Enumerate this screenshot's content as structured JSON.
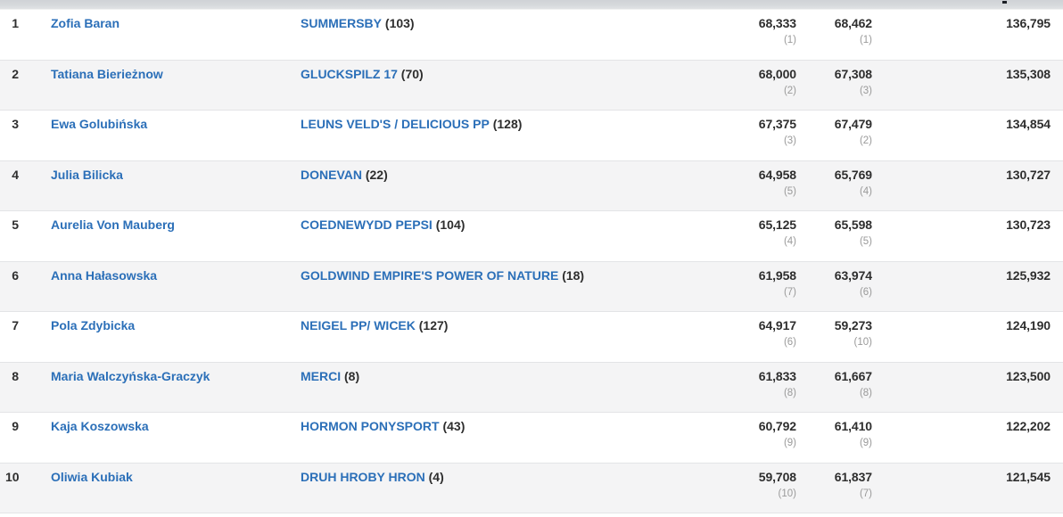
{
  "colors": {
    "link_blue": "#2b6fb8",
    "text_dark": "#2e2e2e",
    "sub_rank_gray": "#9a9a9a",
    "row_alt_bg": "#f4f4f5",
    "header_strip_gray": "#d6d9dc",
    "divider": "#e3e4e6"
  },
  "rows": [
    {
      "rank": "1",
      "rider": "Zofia Baran",
      "horse": "SUMMERSBY",
      "horse_no": "(103)",
      "score1": "68,333",
      "score1_rank": "(1)",
      "score2": "68,462",
      "score2_rank": "(1)",
      "total": "136,795"
    },
    {
      "rank": "2",
      "rider": "Tatiana Bierieżnow",
      "horse": "GLUCKSPILZ 17",
      "horse_no": "(70)",
      "score1": "68,000",
      "score1_rank": "(2)",
      "score2": "67,308",
      "score2_rank": "(3)",
      "total": "135,308"
    },
    {
      "rank": "3",
      "rider": "Ewa Golubińska",
      "horse": "LEUNS VELD'S / DELICIOUS PP",
      "horse_no": "(128)",
      "score1": "67,375",
      "score1_rank": "(3)",
      "score2": "67,479",
      "score2_rank": "(2)",
      "total": "134,854"
    },
    {
      "rank": "4",
      "rider": "Julia Bilicka",
      "horse": "DONEVAN",
      "horse_no": "(22)",
      "score1": "64,958",
      "score1_rank": "(5)",
      "score2": "65,769",
      "score2_rank": "(4)",
      "total": "130,727"
    },
    {
      "rank": "5",
      "rider": "Aurelia Von Mauberg",
      "horse": "COEDNEWYDD PEPSI",
      "horse_no": "(104)",
      "score1": "65,125",
      "score1_rank": "(4)",
      "score2": "65,598",
      "score2_rank": "(5)",
      "total": "130,723"
    },
    {
      "rank": "6",
      "rider": "Anna Hałasowska",
      "horse": "GOLDWIND EMPIRE'S POWER OF NATURE",
      "horse_no": "(18)",
      "score1": "61,958",
      "score1_rank": "(7)",
      "score2": "63,974",
      "score2_rank": "(6)",
      "total": "125,932"
    },
    {
      "rank": "7",
      "rider": "Pola Zdybicka",
      "horse": "NEIGEL PP/ WICEK",
      "horse_no": "(127)",
      "score1": "64,917",
      "score1_rank": "(6)",
      "score2": "59,273",
      "score2_rank": "(10)",
      "total": "124,190"
    },
    {
      "rank": "8",
      "rider": "Maria Walczyńska-Graczyk",
      "horse": "MERCI",
      "horse_no": "(8)",
      "score1": "61,833",
      "score1_rank": "(8)",
      "score2": "61,667",
      "score2_rank": "(8)",
      "total": "123,500"
    },
    {
      "rank": "9",
      "rider": "Kaja Koszowska",
      "horse": "HORMON PONYSPORT",
      "horse_no": "(43)",
      "score1": "60,792",
      "score1_rank": "(9)",
      "score2": "61,410",
      "score2_rank": "(9)",
      "total": "122,202"
    },
    {
      "rank": "10",
      "rider": "Oliwia Kubiak",
      "horse": "DRUH HROBY HRON",
      "horse_no": "(4)",
      "score1": "59,708",
      "score1_rank": "(10)",
      "score2": "61,837",
      "score2_rank": "(7)",
      "total": "121,545"
    }
  ]
}
